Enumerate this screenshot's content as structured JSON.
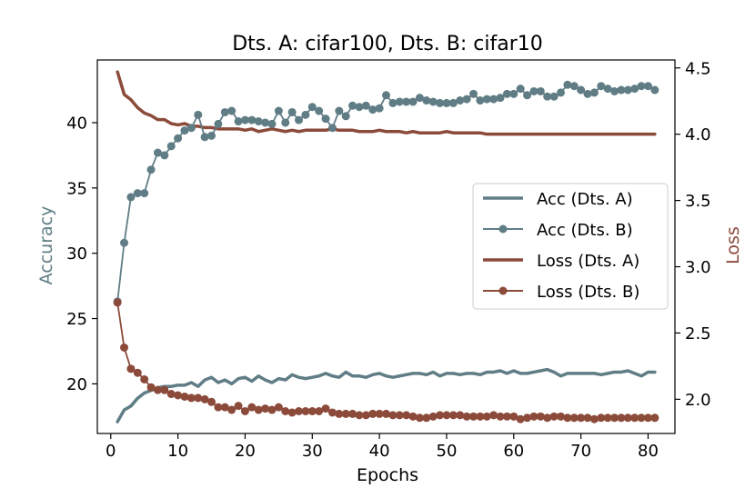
{
  "chart_data": {
    "type": "line",
    "title": "Dts. A: cifar100, Dts. B: cifar10",
    "xlabel": "Epochs",
    "ylabel": "Accuracy",
    "y2label": "Loss",
    "xlim": [
      -2,
      84
    ],
    "ylim": [
      16.2,
      44.8
    ],
    "y2lim": [
      1.742,
      4.56
    ],
    "xticks": [
      0,
      10,
      20,
      30,
      40,
      50,
      60,
      70,
      80
    ],
    "yticks": [
      20,
      25,
      30,
      35,
      40
    ],
    "y2ticks": [
      2.0,
      2.5,
      3.0,
      3.5,
      4.0,
      4.5
    ],
    "y2tick_labels": [
      "2.0",
      "2.5",
      "3.0",
      "3.5",
      "4.0",
      "4.5"
    ],
    "legend_position": "center-right",
    "colors": {
      "accuracy": "#607d86",
      "loss": "#8b4a3a"
    },
    "series": [
      {
        "name": "Acc (Dts. A)",
        "axis": "left",
        "marker": false,
        "values": [
          17.1,
          18.0,
          18.3,
          18.9,
          19.3,
          19.5,
          19.7,
          19.8,
          19.8,
          19.9,
          19.9,
          20.1,
          19.8,
          20.3,
          20.5,
          20.1,
          20.3,
          20.0,
          20.4,
          20.5,
          20.2,
          20.6,
          20.3,
          20.1,
          20.4,
          20.3,
          20.7,
          20.5,
          20.4,
          20.5,
          20.6,
          20.8,
          20.6,
          20.5,
          20.9,
          20.6,
          20.6,
          20.5,
          20.7,
          20.8,
          20.6,
          20.5,
          20.6,
          20.7,
          20.8,
          20.8,
          20.7,
          20.9,
          20.6,
          20.8,
          20.8,
          20.7,
          20.8,
          20.8,
          20.7,
          20.9,
          20.9,
          21.0,
          20.8,
          21.0,
          20.8,
          20.8,
          20.9,
          21.0,
          21.1,
          20.9,
          20.6,
          20.8,
          20.8,
          20.8,
          20.8,
          20.8,
          20.7,
          20.8,
          20.9,
          20.9,
          21.0,
          20.8,
          20.6,
          20.9,
          20.9
        ]
      },
      {
        "name": "Acc (Dts. B)",
        "axis": "left",
        "marker": true,
        "values": [
          26.3,
          30.8,
          34.3,
          34.6,
          34.6,
          36.4,
          37.7,
          37.5,
          38.2,
          38.8,
          39.4,
          39.6,
          40.6,
          38.9,
          39.0,
          39.9,
          40.8,
          40.9,
          40.1,
          40.2,
          40.2,
          40.1,
          40.0,
          39.9,
          40.9,
          40.0,
          40.8,
          40.2,
          40.6,
          41.2,
          40.9,
          40.3,
          39.6,
          40.9,
          40.5,
          41.3,
          41.2,
          41.3,
          41.0,
          41.1,
          42.1,
          41.5,
          41.6,
          41.6,
          41.6,
          41.9,
          41.7,
          41.6,
          41.5,
          41.5,
          41.5,
          41.7,
          41.8,
          42.2,
          41.7,
          41.8,
          41.8,
          41.9,
          42.2,
          42.2,
          42.6,
          42.1,
          42.4,
          42.4,
          42.0,
          42.0,
          42.3,
          42.9,
          42.8,
          42.5,
          42.2,
          42.3,
          42.8,
          42.6,
          42.4,
          42.5,
          42.5,
          42.6,
          42.8,
          42.8,
          42.5
        ]
      },
      {
        "name": "Loss (Dts. A)",
        "axis": "right",
        "marker": false,
        "values": [
          4.47,
          4.3,
          4.26,
          4.2,
          4.16,
          4.14,
          4.11,
          4.11,
          4.08,
          4.07,
          4.08,
          4.06,
          4.06,
          4.05,
          4.05,
          4.04,
          4.04,
          4.04,
          4.04,
          4.03,
          4.04,
          4.02,
          4.03,
          4.04,
          4.03,
          4.02,
          4.03,
          4.02,
          4.03,
          4.03,
          4.03,
          4.03,
          4.04,
          4.03,
          4.03,
          4.03,
          4.02,
          4.02,
          4.02,
          4.03,
          4.02,
          4.02,
          4.02,
          4.01,
          4.02,
          4.01,
          4.01,
          4.01,
          4.01,
          4.02,
          4.01,
          4.01,
          4.01,
          4.01,
          4.01,
          4.0,
          4.0,
          4.0,
          4.0,
          4.0,
          4.0,
          4.0,
          4.0,
          4.0,
          4.0,
          4.0,
          4.0,
          4.0,
          4.0,
          4.0,
          4.0,
          4.0,
          4.0,
          4.0,
          4.0,
          4.0,
          4.0,
          4.0,
          4.0,
          4.0,
          4.0
        ]
      },
      {
        "name": "Loss (Dts. B)",
        "axis": "right",
        "marker": true,
        "values": [
          2.73,
          2.39,
          2.23,
          2.2,
          2.15,
          2.09,
          2.07,
          2.07,
          2.04,
          2.03,
          2.02,
          2.01,
          2.01,
          2.0,
          1.98,
          1.94,
          1.94,
          1.92,
          1.95,
          1.91,
          1.94,
          1.92,
          1.93,
          1.92,
          1.94,
          1.91,
          1.9,
          1.91,
          1.91,
          1.91,
          1.91,
          1.93,
          1.9,
          1.89,
          1.89,
          1.89,
          1.88,
          1.88,
          1.89,
          1.89,
          1.89,
          1.88,
          1.88,
          1.88,
          1.87,
          1.86,
          1.86,
          1.87,
          1.88,
          1.88,
          1.88,
          1.88,
          1.87,
          1.87,
          1.87,
          1.87,
          1.88,
          1.87,
          1.87,
          1.87,
          1.85,
          1.86,
          1.87,
          1.87,
          1.86,
          1.87,
          1.87,
          1.86,
          1.86,
          1.86,
          1.86,
          1.85,
          1.86,
          1.86,
          1.86,
          1.86,
          1.86,
          1.86,
          1.86,
          1.86,
          1.86
        ]
      }
    ]
  }
}
